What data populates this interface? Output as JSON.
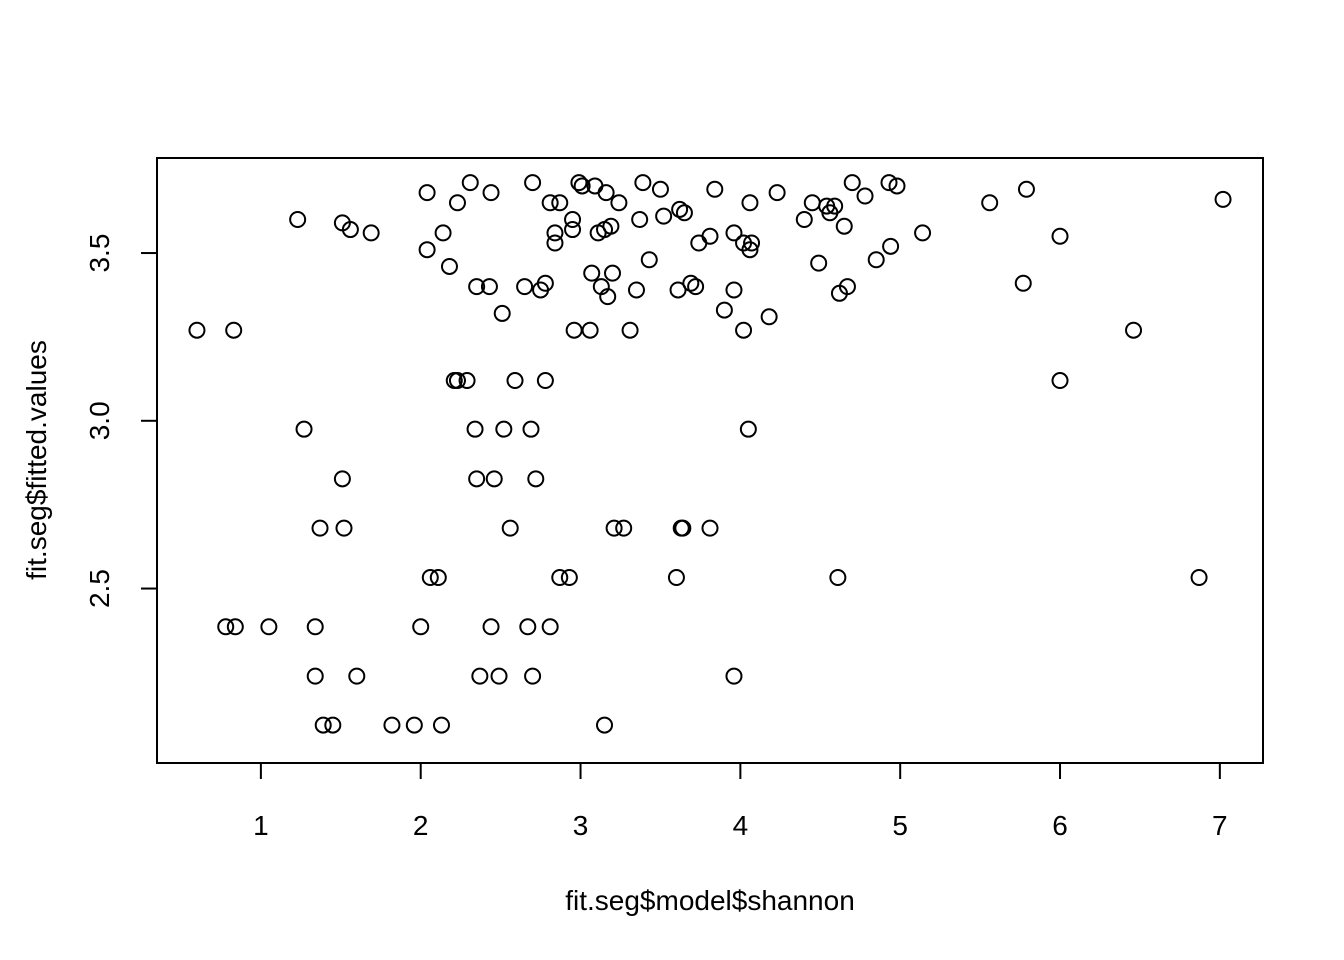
{
  "chart_data": {
    "type": "scatter",
    "title": "",
    "xlabel": "fit.seg$model$shannon",
    "ylabel": "fit.seg$fitted.values",
    "xlim": [
      0.35,
      7.27
    ],
    "ylim": [
      1.98,
      3.7833
    ],
    "x_ticks": [
      1,
      2,
      3,
      4,
      5,
      6,
      7
    ],
    "y_ticks": [
      2.5,
      3.0,
      3.5
    ],
    "x_tick_labels": [
      "1",
      "2",
      "3",
      "4",
      "5",
      "6",
      "7"
    ],
    "y_tick_labels": [
      "2.5",
      "3.0",
      "3.5"
    ],
    "grid": false,
    "legend": "none",
    "marker": "open-circle",
    "points": [
      [
        0.6,
        3.27
      ],
      [
        0.83,
        3.27
      ],
      [
        1.23,
        3.6
      ],
      [
        1.51,
        3.59
      ],
      [
        1.56,
        3.57
      ],
      [
        1.69,
        3.56
      ],
      [
        2.04,
        3.68
      ],
      [
        2.04,
        3.51
      ],
      [
        2.14,
        3.56
      ],
      [
        2.18,
        3.46
      ],
      [
        2.23,
        3.65
      ],
      [
        2.31,
        3.71
      ],
      [
        2.35,
        3.4
      ],
      [
        2.43,
        3.4
      ],
      [
        2.44,
        3.68
      ],
      [
        2.51,
        3.32
      ],
      [
        2.65,
        3.4
      ],
      [
        2.7,
        3.71
      ],
      [
        2.75,
        3.39
      ],
      [
        2.78,
        3.41
      ],
      [
        2.81,
        3.65
      ],
      [
        2.84,
        3.56
      ],
      [
        2.84,
        3.53
      ],
      [
        2.87,
        3.65
      ],
      [
        2.95,
        3.6
      ],
      [
        2.95,
        3.57
      ],
      [
        2.99,
        3.71
      ],
      [
        3.01,
        3.7
      ],
      [
        3.07,
        3.44
      ],
      [
        3.09,
        3.7
      ],
      [
        3.11,
        3.56
      ],
      [
        3.13,
        3.4
      ],
      [
        3.15,
        3.57
      ],
      [
        3.16,
        3.68
      ],
      [
        3.17,
        3.37
      ],
      [
        3.19,
        3.58
      ],
      [
        3.2,
        3.44
      ],
      [
        3.24,
        3.65
      ],
      [
        3.35,
        3.39
      ],
      [
        3.37,
        3.6
      ],
      [
        3.39,
        3.71
      ],
      [
        3.43,
        3.48
      ],
      [
        3.5,
        3.69
      ],
      [
        3.52,
        3.61
      ],
      [
        3.61,
        3.39
      ],
      [
        3.62,
        3.63
      ],
      [
        3.65,
        3.62
      ],
      [
        3.69,
        3.41
      ],
      [
        3.72,
        3.4
      ],
      [
        3.74,
        3.53
      ],
      [
        3.81,
        3.55
      ],
      [
        3.84,
        3.69
      ],
      [
        3.9,
        3.33
      ],
      [
        3.96,
        3.56
      ],
      [
        3.96,
        3.39
      ],
      [
        4.02,
        3.53
      ],
      [
        4.06,
        3.51
      ],
      [
        4.06,
        3.65
      ],
      [
        4.07,
        3.53
      ],
      [
        4.23,
        3.68
      ],
      [
        4.18,
        3.31
      ],
      [
        4.4,
        3.6
      ],
      [
        4.45,
        3.65
      ],
      [
        4.49,
        3.47
      ],
      [
        4.54,
        3.64
      ],
      [
        4.56,
        3.62
      ],
      [
        4.59,
        3.64
      ],
      [
        4.62,
        3.38
      ],
      [
        4.65,
        3.58
      ],
      [
        4.67,
        3.4
      ],
      [
        4.7,
        3.71
      ],
      [
        4.78,
        3.67
      ],
      [
        4.85,
        3.48
      ],
      [
        4.93,
        3.71
      ],
      [
        4.94,
        3.52
      ],
      [
        4.98,
        3.7
      ],
      [
        5.14,
        3.56
      ],
      [
        5.56,
        3.65
      ],
      [
        5.77,
        3.41
      ],
      [
        5.79,
        3.69
      ],
      [
        6.0,
        3.55
      ],
      [
        7.02,
        3.66
      ],
      [
        2.96,
        3.27
      ],
      [
        3.06,
        3.27
      ],
      [
        3.31,
        3.27
      ],
      [
        4.02,
        3.27
      ],
      [
        6.46,
        3.27
      ],
      [
        2.21,
        3.12
      ],
      [
        2.23,
        3.12
      ],
      [
        2.29,
        3.12
      ],
      [
        2.59,
        3.12
      ],
      [
        2.78,
        3.12
      ],
      [
        6.0,
        3.12
      ],
      [
        1.27,
        2.975
      ],
      [
        2.34,
        2.975
      ],
      [
        2.52,
        2.975
      ],
      [
        2.69,
        2.975
      ],
      [
        4.05,
        2.975
      ],
      [
        1.51,
        2.827
      ],
      [
        2.35,
        2.827
      ],
      [
        2.46,
        2.827
      ],
      [
        2.72,
        2.827
      ],
      [
        1.37,
        2.68
      ],
      [
        1.52,
        2.68
      ],
      [
        2.56,
        2.68
      ],
      [
        3.21,
        2.68
      ],
      [
        3.27,
        2.68
      ],
      [
        3.63,
        2.68
      ],
      [
        3.64,
        2.68
      ],
      [
        3.81,
        2.68
      ],
      [
        2.06,
        2.533
      ],
      [
        2.11,
        2.533
      ],
      [
        2.87,
        2.533
      ],
      [
        2.93,
        2.533
      ],
      [
        3.6,
        2.533
      ],
      [
        4.61,
        2.533
      ],
      [
        6.87,
        2.533
      ],
      [
        0.78,
        2.386
      ],
      [
        0.84,
        2.386
      ],
      [
        1.05,
        2.386
      ],
      [
        1.34,
        2.386
      ],
      [
        2.0,
        2.386
      ],
      [
        2.44,
        2.386
      ],
      [
        2.67,
        2.386
      ],
      [
        2.81,
        2.386
      ],
      [
        1.34,
        2.239
      ],
      [
        1.6,
        2.239
      ],
      [
        2.37,
        2.239
      ],
      [
        2.49,
        2.239
      ],
      [
        2.7,
        2.239
      ],
      [
        3.96,
        2.239
      ],
      [
        1.39,
        2.093
      ],
      [
        1.45,
        2.093
      ],
      [
        1.82,
        2.093
      ],
      [
        1.96,
        2.093
      ],
      [
        2.13,
        2.093
      ],
      [
        3.15,
        2.093
      ]
    ]
  }
}
